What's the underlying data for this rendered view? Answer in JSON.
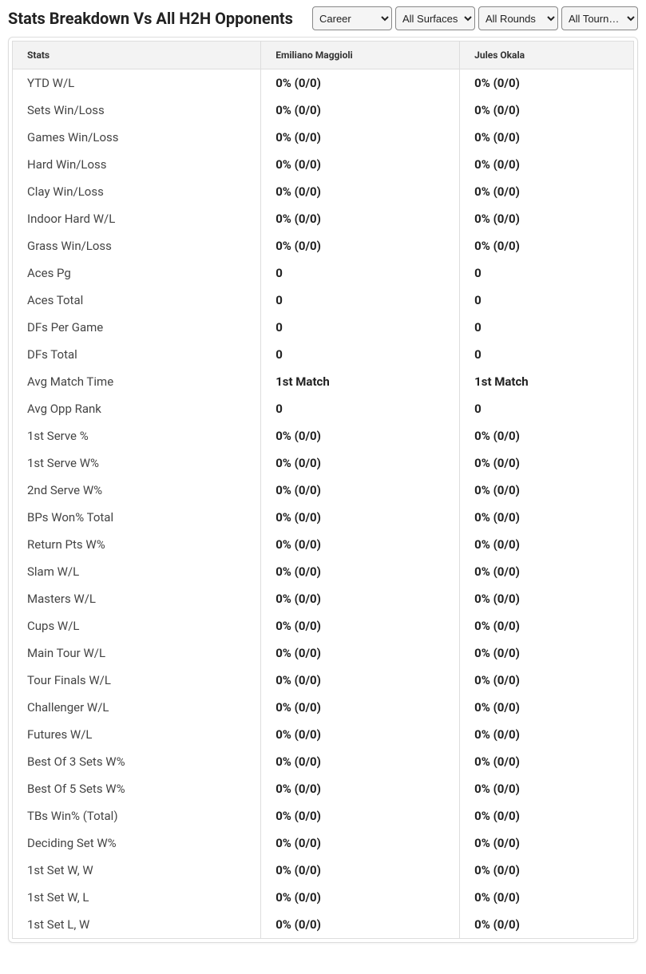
{
  "header": {
    "title": "Stats Breakdown Vs All H2H Opponents"
  },
  "filters": {
    "career": {
      "selected": "Career",
      "options": [
        "Career"
      ]
    },
    "surface": {
      "selected": "All Surfaces",
      "options": [
        "All Surfaces"
      ]
    },
    "round": {
      "selected": "All Rounds",
      "options": [
        "All Rounds"
      ]
    },
    "tournament": {
      "selected": "All Tourn…",
      "options": [
        "All Tourn…"
      ]
    }
  },
  "table": {
    "columns": {
      "stats": "Stats",
      "player1": "Emiliano Maggioli",
      "player2": "Jules Okala"
    },
    "rows": [
      {
        "label": "YTD W/L",
        "p1": "0% (0/0)",
        "p2": "0% (0/0)"
      },
      {
        "label": "Sets Win/Loss",
        "p1": "0% (0/0)",
        "p2": "0% (0/0)"
      },
      {
        "label": "Games Win/Loss",
        "p1": "0% (0/0)",
        "p2": "0% (0/0)"
      },
      {
        "label": "Hard Win/Loss",
        "p1": "0% (0/0)",
        "p2": "0% (0/0)"
      },
      {
        "label": "Clay Win/Loss",
        "p1": "0% (0/0)",
        "p2": "0% (0/0)"
      },
      {
        "label": "Indoor Hard W/L",
        "p1": "0% (0/0)",
        "p2": "0% (0/0)"
      },
      {
        "label": "Grass Win/Loss",
        "p1": "0% (0/0)",
        "p2": "0% (0/0)"
      },
      {
        "label": "Aces Pg",
        "p1": "0",
        "p2": "0"
      },
      {
        "label": "Aces Total",
        "p1": "0",
        "p2": "0"
      },
      {
        "label": "DFs Per Game",
        "p1": "0",
        "p2": "0"
      },
      {
        "label": "DFs Total",
        "p1": "0",
        "p2": "0"
      },
      {
        "label": "Avg Match Time",
        "p1": "1st Match",
        "p2": "1st Match"
      },
      {
        "label": "Avg Opp Rank",
        "p1": "0",
        "p2": "0"
      },
      {
        "label": "1st Serve %",
        "p1": "0% (0/0)",
        "p2": "0% (0/0)"
      },
      {
        "label": "1st Serve W%",
        "p1": "0% (0/0)",
        "p2": "0% (0/0)"
      },
      {
        "label": "2nd Serve W%",
        "p1": "0% (0/0)",
        "p2": "0% (0/0)"
      },
      {
        "label": "BPs Won% Total",
        "p1": "0% (0/0)",
        "p2": "0% (0/0)"
      },
      {
        "label": "Return Pts W%",
        "p1": "0% (0/0)",
        "p2": "0% (0/0)"
      },
      {
        "label": "Slam W/L",
        "p1": "0% (0/0)",
        "p2": "0% (0/0)"
      },
      {
        "label": "Masters W/L",
        "p1": "0% (0/0)",
        "p2": "0% (0/0)"
      },
      {
        "label": "Cups W/L",
        "p1": "0% (0/0)",
        "p2": "0% (0/0)"
      },
      {
        "label": "Main Tour W/L",
        "p1": "0% (0/0)",
        "p2": "0% (0/0)"
      },
      {
        "label": "Tour Finals W/L",
        "p1": "0% (0/0)",
        "p2": "0% (0/0)"
      },
      {
        "label": "Challenger W/L",
        "p1": "0% (0/0)",
        "p2": "0% (0/0)"
      },
      {
        "label": "Futures W/L",
        "p1": "0% (0/0)",
        "p2": "0% (0/0)"
      },
      {
        "label": "Best Of 3 Sets W%",
        "p1": "0% (0/0)",
        "p2": "0% (0/0)"
      },
      {
        "label": "Best Of 5 Sets W%",
        "p1": "0% (0/0)",
        "p2": "0% (0/0)"
      },
      {
        "label": "TBs Win% (Total)",
        "p1": "0% (0/0)",
        "p2": "0% (0/0)"
      },
      {
        "label": "Deciding Set W%",
        "p1": "0% (0/0)",
        "p2": "0% (0/0)"
      },
      {
        "label": "1st Set W, W",
        "p1": "0% (0/0)",
        "p2": "0% (0/0)"
      },
      {
        "label": "1st Set W, L",
        "p1": "0% (0/0)",
        "p2": "0% (0/0)"
      },
      {
        "label": "1st Set L, W",
        "p1": "0% (0/0)",
        "p2": "0% (0/0)"
      }
    ]
  },
  "style": {
    "colors": {
      "background": "#ffffff",
      "text": "#333333",
      "header_bg": "#f3f3f3",
      "border": "#dddddd",
      "bold_text": "#222222"
    },
    "column_widths_pct": [
      40,
      32,
      28
    ],
    "title_fontsize": 20,
    "header_fontsize": 12,
    "cell_fontsize": 15
  }
}
